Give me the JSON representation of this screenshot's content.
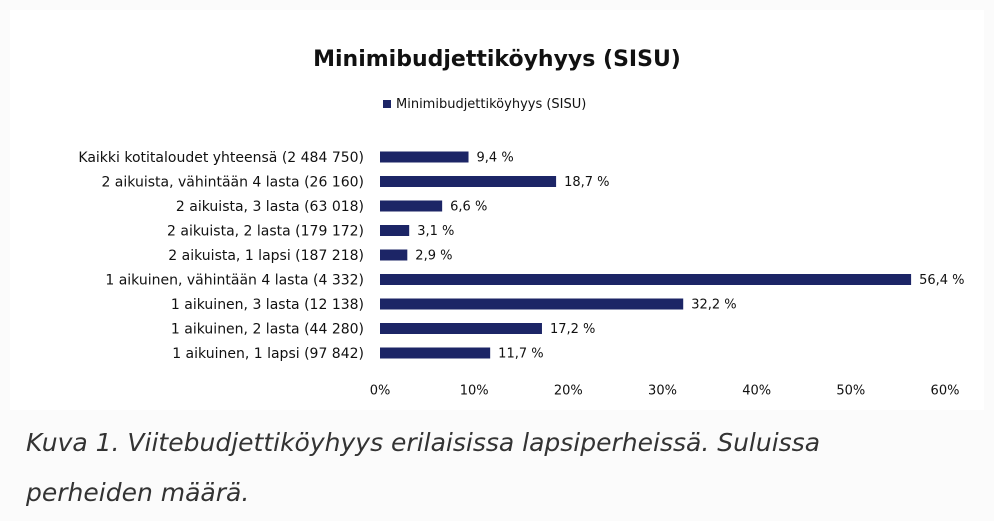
{
  "chart_data": {
    "type": "bar",
    "orientation": "horizontal",
    "title": "Minimibudjettiköyhyys (SISU)",
    "categories": [
      "Kaikki kotitaloudet yhteensä (2 484 750)",
      "2 aikuista,  vähintään 4 lasta (26 160)",
      "2 aikuista, 3 lasta (63 018)",
      "2 aikuista, 2 lasta (179 172)",
      "2 aikuista, 1 lapsi (187 218)",
      "1 aikuinen,  vähintään 4 lasta (4 332)",
      "1 aikuinen, 3 lasta (12 138)",
      "1 aikuinen, 2 lasta (44 280)",
      "1 aikuinen, 1 lapsi (97 842)"
    ],
    "series": [
      {
        "name": "Minimibudjettiköyhyys (SISU)",
        "color": "#1c2566",
        "values": [
          9.4,
          18.7,
          6.6,
          3.1,
          2.9,
          56.4,
          32.2,
          17.2,
          11.7
        ],
        "value_labels": [
          "9,4 %",
          "18,7 %",
          "6,6 %",
          "3,1 %",
          "2,9 %",
          "56,4 %",
          "32,2 %",
          "17,2 %",
          "11,7 %"
        ]
      }
    ],
    "xlim": [
      0,
      60
    ],
    "xticks": [
      {
        "value": 0,
        "label": "0%"
      },
      {
        "value": 10,
        "label": "10%"
      },
      {
        "value": 20,
        "label": "20%"
      },
      {
        "value": 30,
        "label": "30%"
      },
      {
        "value": 40,
        "label": "40%"
      },
      {
        "value": 50,
        "label": "50%"
      },
      {
        "value": 60,
        "label": "60%"
      }
    ],
    "legend": "top"
  },
  "caption": "Kuva 1. Viitebudjettiköyhyys erilaisissa lapsiperheissä. Suluissa perheiden määrä."
}
